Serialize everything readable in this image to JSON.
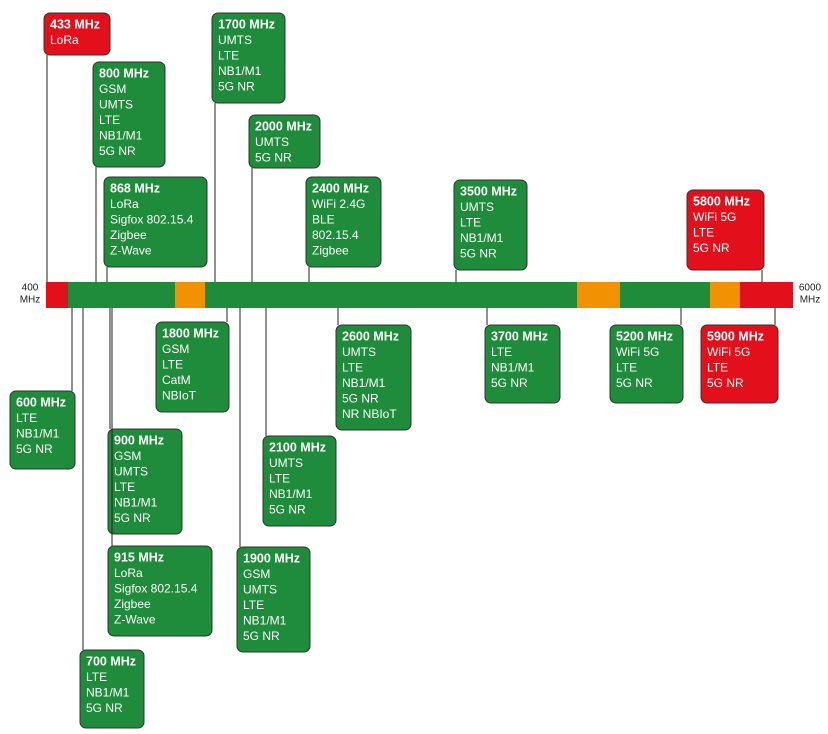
{
  "axis_labels": {
    "start": [
      "400",
      "MHz"
    ],
    "end": [
      "6000",
      "MHz"
    ]
  },
  "nodes": [
    {
      "title": "433 MHz",
      "items": [
        "LoRa"
      ]
    },
    {
      "title": "1700 MHz",
      "items": [
        "UMTS",
        "LTE",
        "NB1/M1",
        "5G NR"
      ]
    },
    {
      "title": "800 MHz",
      "items": [
        "GSM",
        "UMTS",
        "LTE",
        "NB1/M1",
        "5G NR"
      ]
    },
    {
      "title": "2000 MHz",
      "items": [
        "UMTS",
        "5G NR"
      ]
    },
    {
      "title": "868 MHz",
      "items": [
        "LoRa",
        "Sigfox 802.15.4",
        "Zigbee",
        "Z-Wave"
      ]
    },
    {
      "title": "2400 MHz",
      "items": [
        "WiFi 2.4G",
        "BLE",
        "802.15.4",
        "Zigbee"
      ]
    },
    {
      "title": "3500 MHz",
      "items": [
        "UMTS",
        "LTE",
        "NB1/M1",
        "5G NR"
      ]
    },
    {
      "title": "5800 MHz",
      "items": [
        "WiFi 5G",
        "LTE",
        "5G NR"
      ]
    },
    {
      "title": "1800 MHz",
      "items": [
        "GSM",
        "LTE",
        "CatM",
        "NBIoT"
      ]
    },
    {
      "title": "2600 MHz",
      "items": [
        "UMTS",
        "LTE",
        "NB1/M1",
        "5G NR",
        "NR NBIoT"
      ]
    },
    {
      "title": "3700 MHz",
      "items": [
        "LTE",
        "NB1/M1",
        "5G NR"
      ]
    },
    {
      "title": "5200 MHz",
      "items": [
        "WiFi 5G",
        "LTE",
        "5G NR"
      ]
    },
    {
      "title": "5900 MHz",
      "items": [
        "WiFi 5G",
        "LTE",
        "5G NR"
      ]
    },
    {
      "title": "600 MHz",
      "items": [
        "LTE",
        "NB1/M1",
        "5G NR"
      ]
    },
    {
      "title": "2100 MHz",
      "items": [
        "UMTS",
        "LTE",
        "NB1/M1",
        "5G NR"
      ]
    },
    {
      "title": "900 MHz",
      "items": [
        "GSM",
        "UMTS",
        "LTE",
        "NB1/M1",
        "5G NR"
      ]
    },
    {
      "title": "1900 MHz",
      "items": [
        "GSM",
        "UMTS",
        "LTE",
        "NB1/M1",
        "5G NR"
      ]
    },
    {
      "title": "915 MHz",
      "items": [
        "LoRa",
        "Sigfox 802.15.4",
        "Zigbee",
        "Z-Wave"
      ]
    },
    {
      "title": "700 MHz",
      "items": [
        "LTE",
        "NB1/M1",
        "5G NR"
      ]
    }
  ]
}
